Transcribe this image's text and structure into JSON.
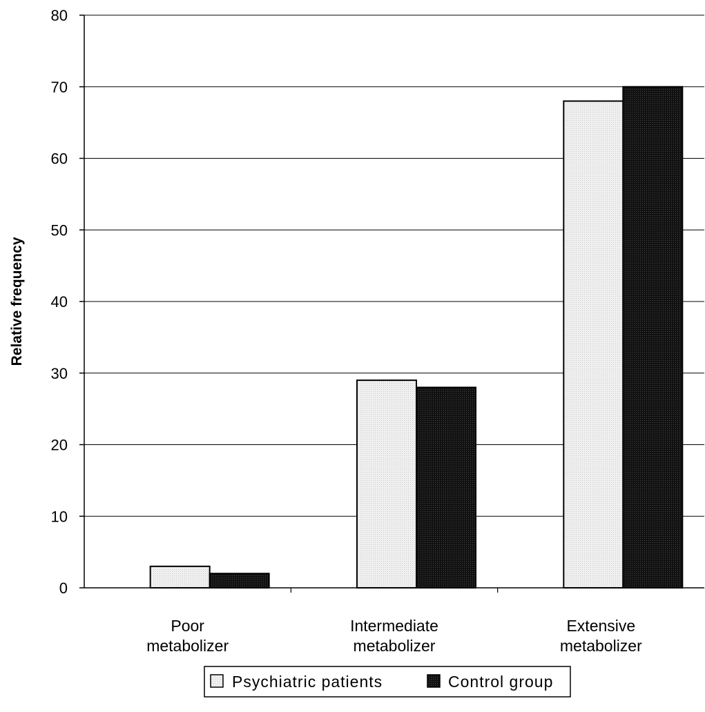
{
  "chart_data": {
    "type": "bar",
    "title": "",
    "xlabel": "",
    "ylabel": "Relative frequency",
    "ylim": [
      0,
      80
    ],
    "yticks": [
      0,
      10,
      20,
      30,
      40,
      50,
      60,
      70,
      80
    ],
    "grid": true,
    "legend_position": "bottom",
    "categories": [
      [
        "Poor",
        "metabolizer"
      ],
      [
        "Intermediate",
        "metabolizer"
      ],
      [
        "Extensive",
        "metabolizer"
      ]
    ],
    "series": [
      {
        "name": "Psychiatric patients",
        "values": [
          3,
          29,
          68
        ],
        "color": "#ececec"
      },
      {
        "name": "Control group",
        "values": [
          2,
          28,
          70
        ],
        "color": "#1e1e1e"
      }
    ]
  }
}
